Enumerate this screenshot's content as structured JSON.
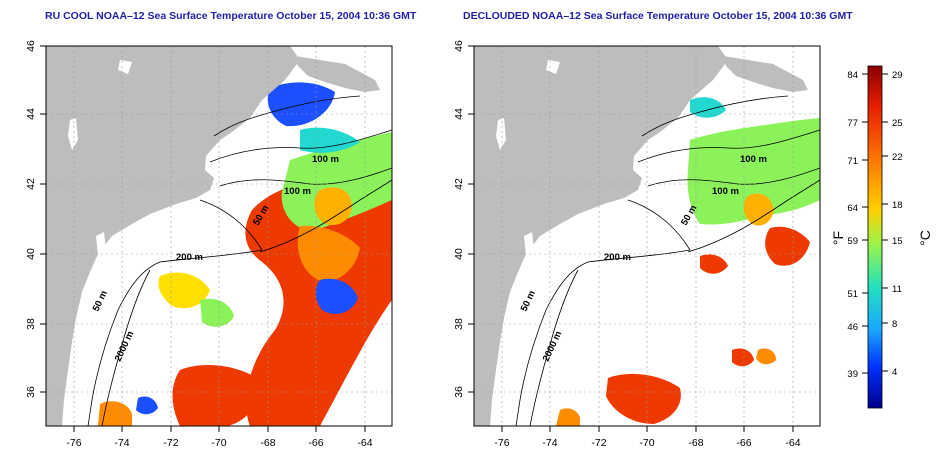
{
  "maps": [
    {
      "title": "RU COOL NOAA–12 Sea Surface Temperature October 15, 2004 10:36 GMT",
      "lat_ticks": [
        "46",
        "44",
        "42",
        "40",
        "38",
        "36"
      ],
      "lon_ticks": [
        "-76",
        "-74",
        "-72",
        "-70",
        "-68",
        "-66",
        "-64"
      ],
      "contour_labels": [
        "100 m",
        "100 m",
        "50 m",
        "200 m",
        "50 m",
        "2000 m"
      ]
    },
    {
      "title": "DECLOUDED NOAA–12 Sea Surface Temperature October 15, 2004 10:36 GMT",
      "lat_ticks": [
        "46",
        "44",
        "42",
        "40",
        "38",
        "36"
      ],
      "lon_ticks": [
        "-76",
        "-74",
        "-72",
        "-70",
        "-68",
        "-66",
        "-64"
      ],
      "contour_labels": [
        "100 m",
        "100 m",
        "50 m",
        "200 m",
        "50 m",
        "2000 m"
      ]
    }
  ],
  "colorbar": {
    "f_label": "°F",
    "c_label": "°C",
    "f_ticks": [
      "84",
      "77",
      "71",
      "64",
      "59",
      "51",
      "46",
      "39"
    ],
    "c_ticks": [
      "29",
      "25",
      "22",
      "18",
      "15",
      "11",
      "8",
      "4"
    ],
    "colors": [
      "#8b0000",
      "#e81f00",
      "#ff7a00",
      "#ffd000",
      "#9bf54a",
      "#20e0c0",
      "#1aa8ff",
      "#0030ff",
      "#00008b"
    ]
  },
  "palette": {
    "land": "#bdbdbd",
    "warm": "#ee3a00",
    "orange": "#ff8c00",
    "yellow": "#ffe000",
    "green": "#8cf25a",
    "cyan": "#22d8d0",
    "blue": "#1c4fff"
  }
}
